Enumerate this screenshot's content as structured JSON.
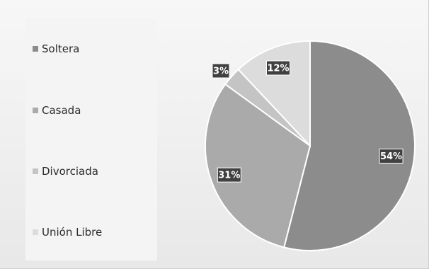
{
  "chart_data": {
    "type": "pie",
    "categories": [
      "Soltera",
      "Casada",
      "Divorciada",
      "Unión Libre"
    ],
    "values": [
      54,
      31,
      3,
      12
    ],
    "data_labels": [
      "54%",
      "31%",
      "3%",
      "12%"
    ],
    "colors": [
      "#8c8c8c",
      "#aaaaaa",
      "#c4c4c4",
      "#dcdcdc"
    ],
    "title": "",
    "legend_position": "left"
  }
}
